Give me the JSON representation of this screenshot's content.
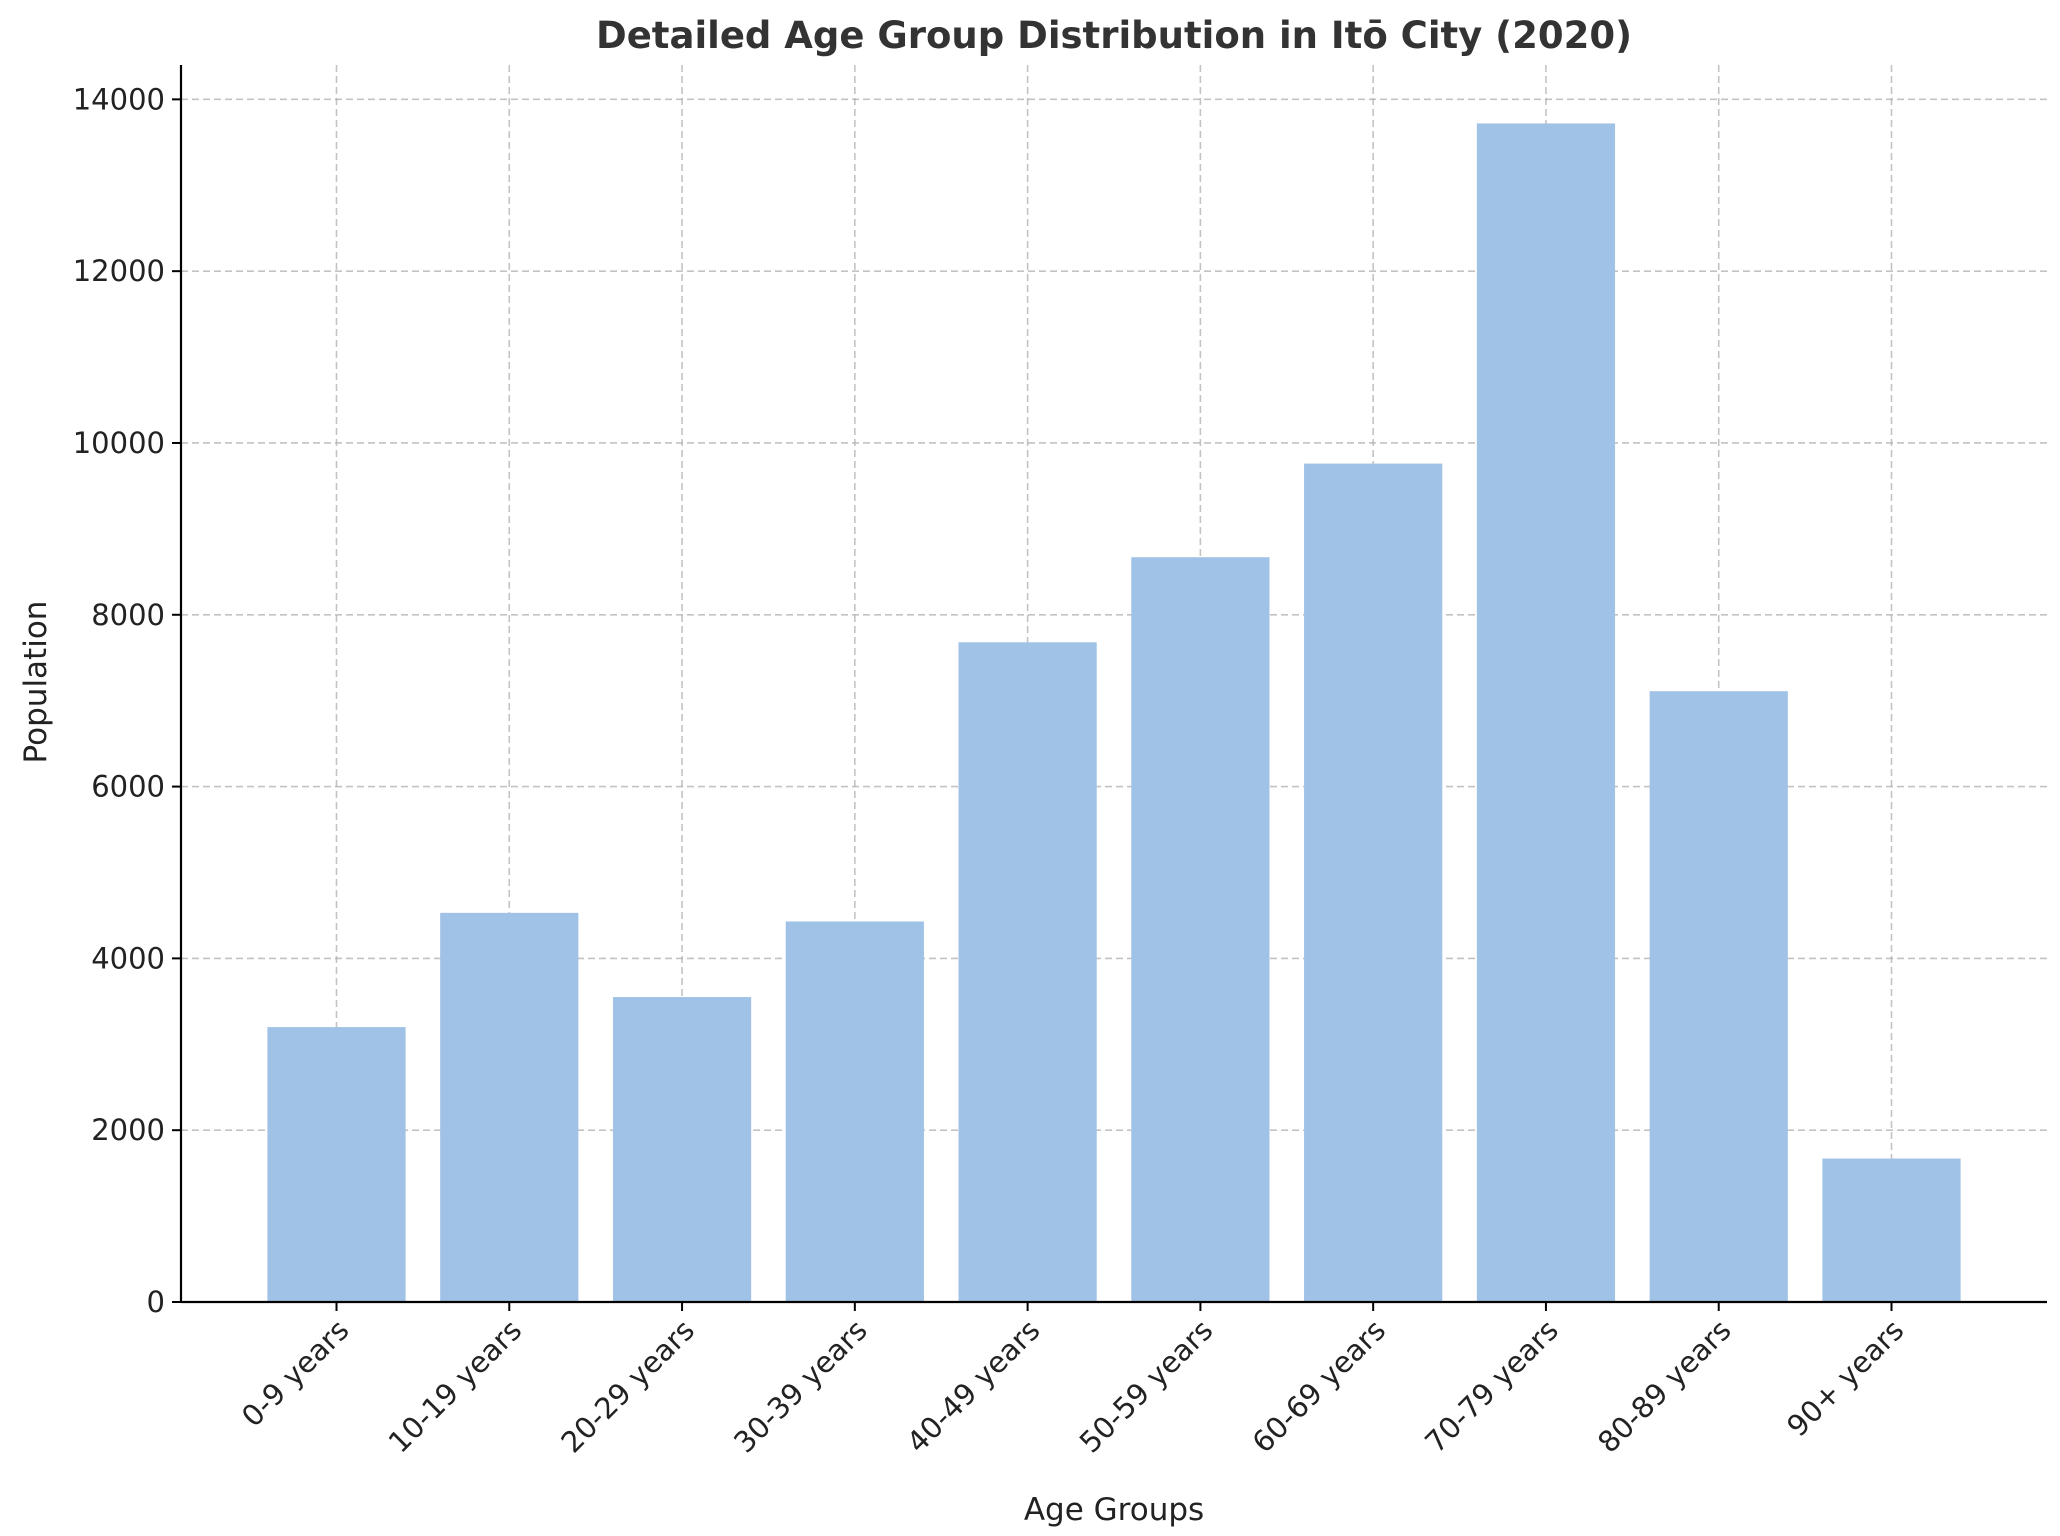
{
  "chart_data": {
    "type": "bar",
    "title": "Detailed Age Group Distribution in Itō City (2020)",
    "xlabel": "Age Groups",
    "ylabel": "Population",
    "categories": [
      "0-9 years",
      "10-19 years",
      "20-29 years",
      "30-39 years",
      "40-49 years",
      "50-59 years",
      "60-69 years",
      "70-79 years",
      "80-89 years",
      "90+ years"
    ],
    "values": [
      3200,
      4530,
      3550,
      4430,
      7680,
      8670,
      9760,
      13720,
      7110,
      1670
    ],
    "ylim": [
      0,
      14400
    ],
    "yticks": [
      0,
      2000,
      4000,
      6000,
      8000,
      10000,
      12000,
      14000
    ],
    "grid": true,
    "bar_color": "#a0c2e6",
    "legend": "none"
  }
}
